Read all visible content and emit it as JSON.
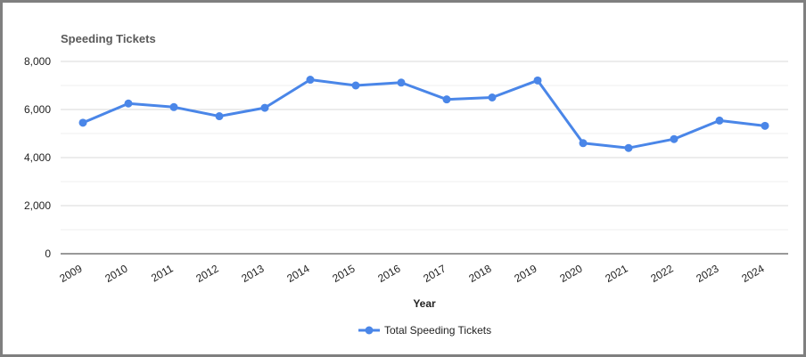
{
  "chart_data": {
    "type": "line",
    "title": "Speeding Tickets",
    "xlabel": "Year",
    "ylabel": "",
    "ylim": [
      0,
      8000
    ],
    "yticks": [
      "0",
      "2,000",
      "4,000",
      "6,000",
      "8,000"
    ],
    "grid": true,
    "legend": "bottom",
    "categories": [
      "2009",
      "2010",
      "2011",
      "2012",
      "2013",
      "2014",
      "2015",
      "2016",
      "2017",
      "2018",
      "2019",
      "2020",
      "2021",
      "2022",
      "2023",
      "2024"
    ],
    "series": [
      {
        "name": "Total Speeding Tickets",
        "color": "#4a86e8",
        "values": [
          5450,
          6250,
          6100,
          5720,
          6070,
          7240,
          7000,
          7120,
          6420,
          6500,
          7210,
          4600,
          4400,
          4770,
          5540,
          5320
        ]
      }
    ]
  }
}
